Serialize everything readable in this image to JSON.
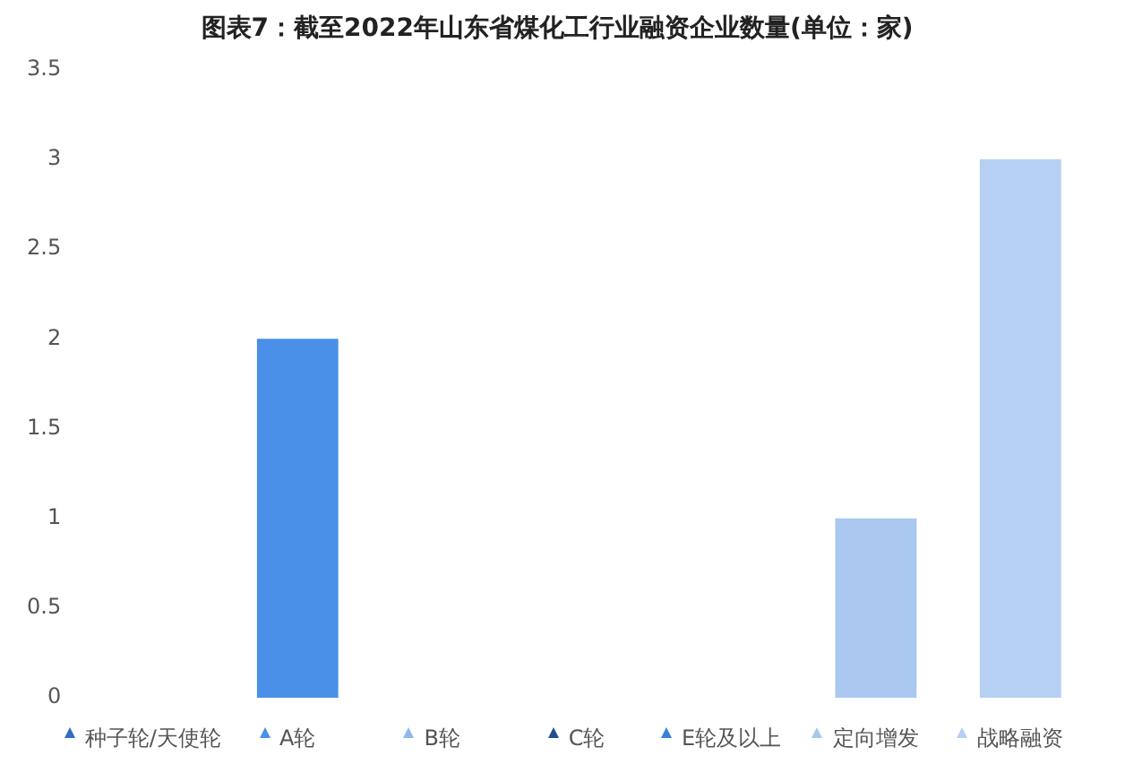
{
  "chart_data": {
    "type": "bar",
    "title": "图表7：截至2022年山东省煤化工行业融资企业数量(单位：家)",
    "categories": [
      "种子轮/天使轮",
      "A轮",
      "B轮",
      "C轮",
      "E轮及以上",
      "定向增发",
      "战略融资"
    ],
    "values": [
      0,
      2,
      0,
      0,
      0,
      1,
      3
    ],
    "colors": [
      "#2e6ec4",
      "#4a90e8",
      "#8fb8ee",
      "#234f8c",
      "#3a7fd8",
      "#a9c7ef",
      "#b6d0f3"
    ],
    "ylim": [
      0,
      3.5
    ],
    "yticks": [
      0,
      0.5,
      1,
      1.5,
      2,
      2.5,
      3,
      3.5
    ],
    "grid": false
  }
}
